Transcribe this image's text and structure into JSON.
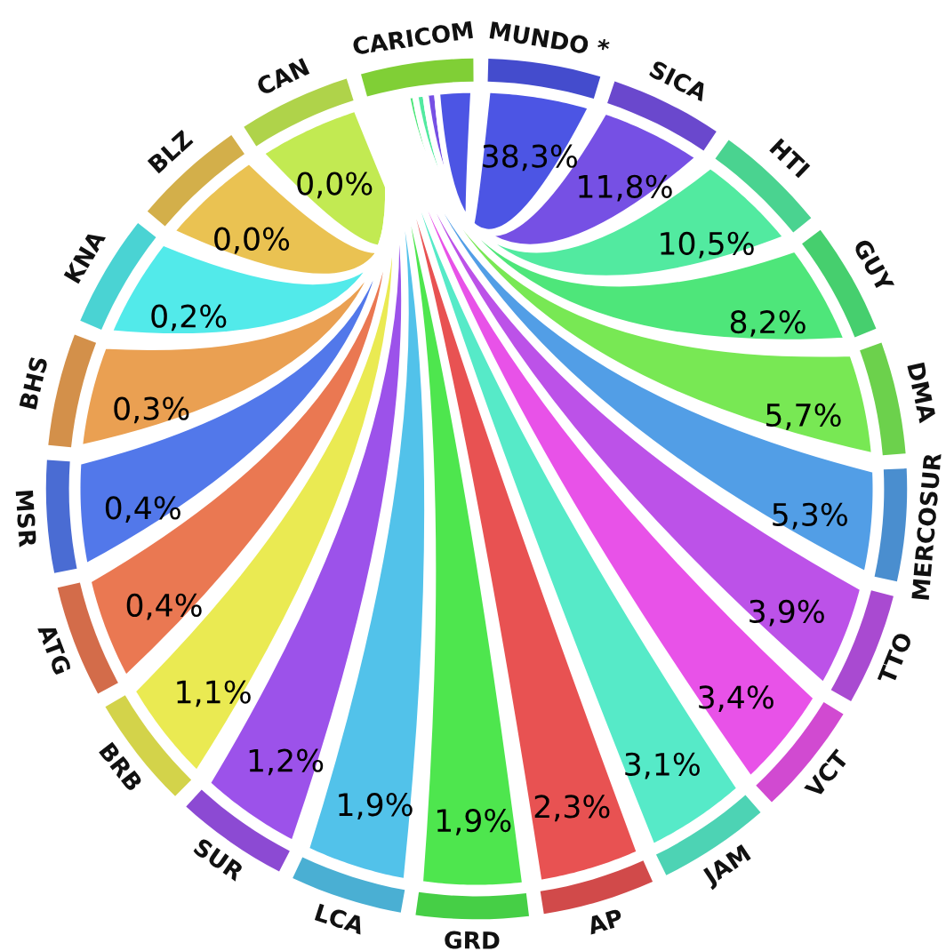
{
  "chart_data": {
    "type": "other",
    "categories": [
      "CARICOM",
      "MUNDO *",
      "SICA",
      "HTI",
      "GUY",
      "DMA",
      "MERCOSUR",
      "TTO",
      "VCT",
      "JAM",
      "AP",
      "GRD",
      "LCA",
      "SUR",
      "BRB",
      "ATG",
      "MSR",
      "BHS",
      "KNA",
      "BLZ",
      "CAN"
    ],
    "values": [
      null,
      38.3,
      11.8,
      10.5,
      8.2,
      5.7,
      5.3,
      3.9,
      3.4,
      3.1,
      2.3,
      1.9,
      1.9,
      1.2,
      1.1,
      0.4,
      0.4,
      0.3,
      0.2,
      0.0,
      0.0
    ],
    "value_labels": [
      null,
      "38,3%",
      "11,8%",
      "10,5%",
      "8,2%",
      "5,7%",
      "5,3%",
      "3,9%",
      "3,4%",
      "3,1%",
      "2,3%",
      "1,9%",
      "1,9%",
      "1,2%",
      "1,1%",
      "0,4%",
      "0,4%",
      "0,3%",
      "0,2%",
      "0,0%",
      "0,0%"
    ],
    "colors": [
      "#8ee63c",
      "#4c55e4",
      "#7650e4",
      "#52eaa0",
      "#4ee67a",
      "#78e854",
      "#529ee6",
      "#bc52e8",
      "#e852e8",
      "#56eac8",
      "#e85252",
      "#4ee64e",
      "#52c2ea",
      "#9c52ea",
      "#eaea52",
      "#ea7852",
      "#5278ea",
      "#eaa052",
      "#52eaea",
      "#eac252",
      "#c2ea52"
    ]
  }
}
